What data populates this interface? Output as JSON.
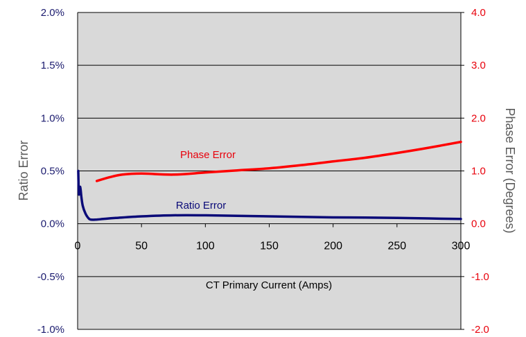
{
  "chart_data": {
    "type": "line",
    "xlabel": "CT Primary Current (Amps)",
    "ylabel_left": "Ratio Error",
    "ylabel_right": "Phase  Error (Degrees)",
    "xlim": [
      0,
      300
    ],
    "ylim_left": [
      -1.0,
      2.0
    ],
    "ylim_right": [
      -2.0,
      4.0
    ],
    "x_ticks": [
      "0",
      "50",
      "100",
      "150",
      "200",
      "250",
      "300"
    ],
    "y_left_ticks": [
      "2.0%",
      "1.5%",
      "1.0%",
      "0.5%",
      "0.0%",
      "-0.5%",
      "-1.0%"
    ],
    "y_right_ticks": [
      "4.0",
      "3.0",
      "2.0",
      "1.0",
      "0.0",
      "-1.0",
      "-2.0"
    ],
    "grid": "horizontal",
    "plot_background": "#d9d9d9",
    "series": [
      {
        "name": "Ratio Error",
        "axis": "left",
        "color": "#0a0a78",
        "x": [
          0.5,
          1,
          2,
          3,
          4,
          6,
          8,
          10,
          15,
          20,
          30,
          50,
          75,
          100,
          125,
          150,
          175,
          200,
          225,
          250,
          275,
          300
        ],
        "y": [
          0.5,
          0.28,
          0.35,
          0.25,
          0.17,
          0.1,
          0.06,
          0.04,
          0.04,
          0.045,
          0.055,
          0.07,
          0.08,
          0.08,
          0.075,
          0.07,
          0.065,
          0.06,
          0.058,
          0.055,
          0.05,
          0.045
        ]
      },
      {
        "name": "Phase Error",
        "axis": "right",
        "color": "#ff0000",
        "x": [
          15,
          25,
          35,
          50,
          75,
          100,
          125,
          150,
          175,
          200,
          225,
          250,
          275,
          300
        ],
        "y": [
          0.81,
          0.88,
          0.93,
          0.95,
          0.93,
          0.97,
          1.01,
          1.05,
          1.11,
          1.18,
          1.25,
          1.34,
          1.44,
          1.55
        ]
      }
    ]
  }
}
